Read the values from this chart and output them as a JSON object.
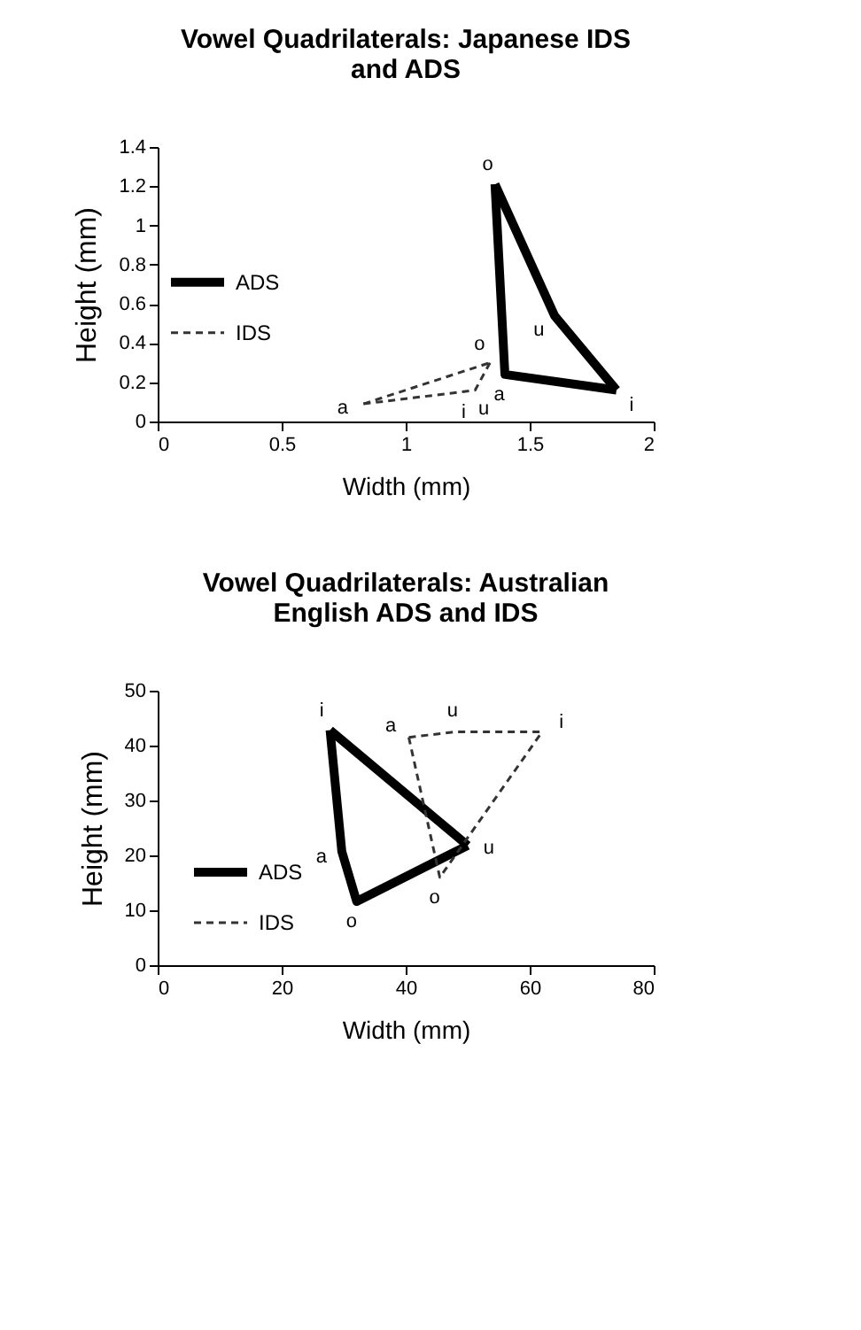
{
  "chart_data": [
    {
      "type": "line",
      "title": "Vowel Quadrilaterals: Japanese IDS and ADS",
      "xlabel": "Width (mm)",
      "ylabel": "Height (mm)",
      "xlim": [
        0,
        2
      ],
      "xticks": [
        0,
        0.5,
        1,
        1.5,
        2
      ],
      "ylim": [
        0,
        1.4
      ],
      "yticks": [
        0,
        0.2,
        0.4,
        0.6,
        0.8,
        1,
        1.2,
        1.4
      ],
      "grid": false,
      "legend": "left",
      "marker": "none",
      "series": [
        {
          "name": "ADS",
          "color": "#000000",
          "line_style": "solid",
          "x": [
            1.36,
            1.6,
            1.85
          ],
          "values": [
            1.21,
            0.54,
            0.16
          ]
        },
        {
          "color": "#000000",
          "line_style": "solid",
          "x": [
            1.36,
            1.4,
            1.85
          ],
          "values": [
            1.21,
            0.24,
            0.16
          ]
        },
        {
          "name": "IDS",
          "color": "#333333",
          "line_style": "dashed",
          "x": [
            0.83,
            1.34
          ],
          "values": [
            0.09,
            0.3
          ]
        },
        {
          "color": "#333333",
          "line_style": "dashed",
          "x": [
            0.83,
            1.22,
            1.28,
            1.34
          ],
          "values": [
            0.09,
            0.15,
            0.16,
            0.3
          ]
        }
      ],
      "annotations": [
        {
          "text": "o",
          "x": 1.36,
          "y": 1.21
        },
        {
          "text": "u",
          "x": 1.6,
          "y": 0.54
        },
        {
          "text": "i",
          "x": 1.85,
          "y": 0.16
        },
        {
          "text": "a",
          "x": 1.4,
          "y": 0.24
        },
        {
          "text": "o",
          "x": 1.34,
          "y": 0.3
        },
        {
          "text": "a",
          "x": 0.83,
          "y": 0.09
        },
        {
          "text": "i",
          "x": 1.22,
          "y": 0.15
        },
        {
          "text": "u",
          "x": 1.28,
          "y": 0.16
        }
      ]
    },
    {
      "type": "line",
      "title": "Vowel Quadrilaterals: Australian English ADS and IDS",
      "xlabel": "Width (mm)",
      "ylabel": "Height (mm)",
      "xlim": [
        0,
        80
      ],
      "xticks": [
        0,
        20,
        40,
        60,
        80
      ],
      "ylim": [
        0,
        50
      ],
      "yticks": [
        0,
        10,
        20,
        30,
        40,
        50
      ],
      "grid": false,
      "legend": "bottom left",
      "marker": "none",
      "series": [
        {
          "name": "ADS",
          "color": "#000000",
          "line_style": "solid",
          "x": [
            27.8,
            50.0
          ],
          "values": [
            42.8,
            21.8
          ]
        },
        {
          "color": "#000000",
          "line_style": "solid",
          "x": [
            27.8,
            29.7,
            32.1,
            50.0
          ],
          "values": [
            42.8,
            20.7,
            11.6,
            21.8
          ]
        },
        {
          "name": "IDS",
          "color": "#333333",
          "line_style": "dashed",
          "x": [
            40.5,
            48,
            62
          ],
          "values": [
            41.5,
            42.5,
            42.5
          ]
        },
        {
          "color": "#333333",
          "line_style": "dashed",
          "x": [
            40.5,
            45.5,
            62
          ],
          "values": [
            41.5,
            16,
            42.5
          ]
        }
      ],
      "annotations": [
        {
          "text": "i",
          "x": 27.8,
          "y": 42.8
        },
        {
          "text": "a",
          "x": 29.7,
          "y": 20.7
        },
        {
          "text": "o",
          "x": 32.1,
          "y": 11.6
        },
        {
          "text": "u",
          "x": 50.0,
          "y": 21.8
        },
        {
          "text": "a",
          "x": 40.5,
          "y": 41.5
        },
        {
          "text": "u",
          "x": 48,
          "y": 42.5
        },
        {
          "text": "i",
          "x": 62,
          "y": 42.5
        },
        {
          "text": "o",
          "x": 45.5,
          "y": 16
        }
      ]
    }
  ]
}
